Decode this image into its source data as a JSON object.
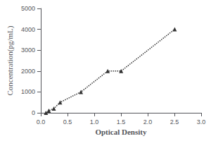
{
  "chart_data": {
    "type": "line",
    "xlabel": "Optical Density",
    "ylabel": "Concentration(pg/mL)",
    "x": [
      0.097,
      0.151,
      0.245,
      0.362,
      0.752,
      1.252,
      1.503,
      2.505
    ],
    "values": [
      0,
      100,
      200,
      500,
      1000,
      2000,
      2000,
      4000
    ],
    "xlim": [
      0,
      3
    ],
    "ylim": [
      0,
      5000
    ],
    "xticks": [
      {
        "value": 0,
        "label": "0.0"
      },
      {
        "value": 0.5,
        "label": "0.5"
      },
      {
        "value": 1,
        "label": "1.0"
      },
      {
        "value": 1.5,
        "label": "1.5"
      },
      {
        "value": 2,
        "label": "2.0"
      },
      {
        "value": 2.5,
        "label": "2.5"
      },
      {
        "value": 3,
        "label": "3.0"
      }
    ],
    "yticks": [
      0,
      1000,
      2000,
      3000,
      4000,
      5000
    ],
    "color": "#333333",
    "line_style": "dotted",
    "marker": "triangle",
    "grid": false
  }
}
